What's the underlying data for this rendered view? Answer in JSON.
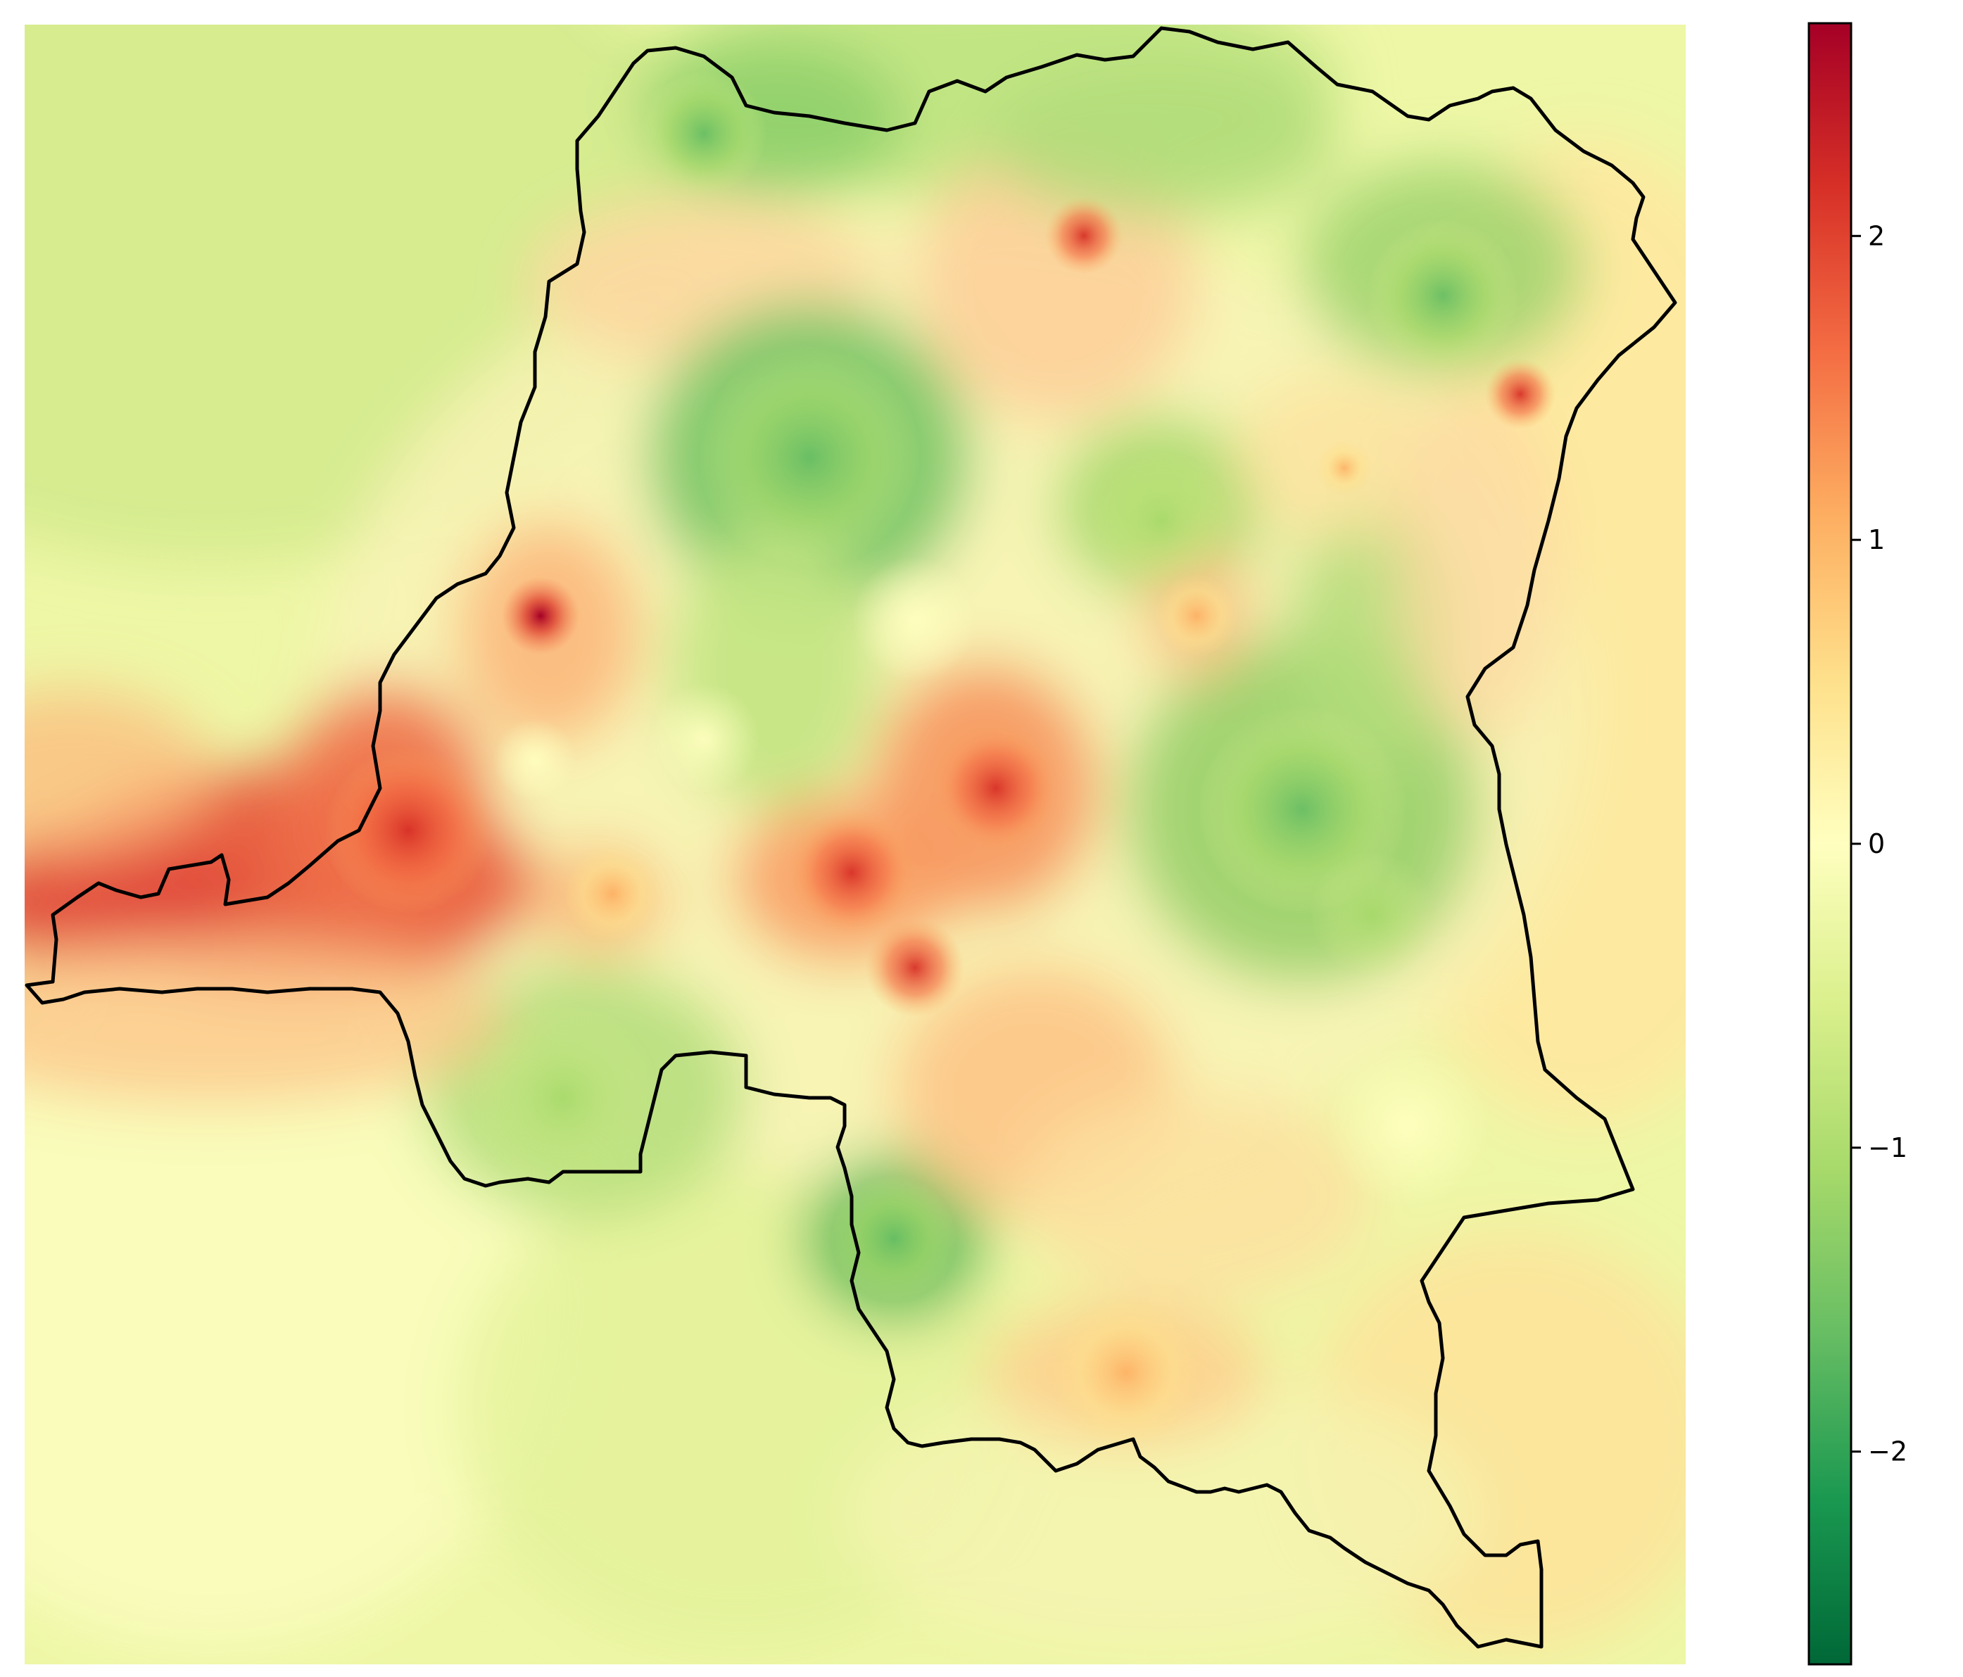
{
  "map": {
    "region_outline": "country-border",
    "colormap": "RdYlGn_r",
    "background_field": "continuous-surface"
  },
  "colorbar": {
    "min": -2.7,
    "max": 2.7,
    "ticks": [
      {
        "value": 2,
        "label": "2"
      },
      {
        "value": 1,
        "label": "1"
      },
      {
        "value": 0,
        "label": "0"
      },
      {
        "value": -1,
        "label": "−1"
      },
      {
        "value": -2,
        "label": "−2"
      }
    ],
    "stops": [
      "#006837",
      "#1a9850",
      "#66bd63",
      "#a6d96a",
      "#d9ef8b",
      "#ffffbf",
      "#fee08b",
      "#fdae61",
      "#f46d43",
      "#d73027",
      "#a50026"
    ]
  }
}
